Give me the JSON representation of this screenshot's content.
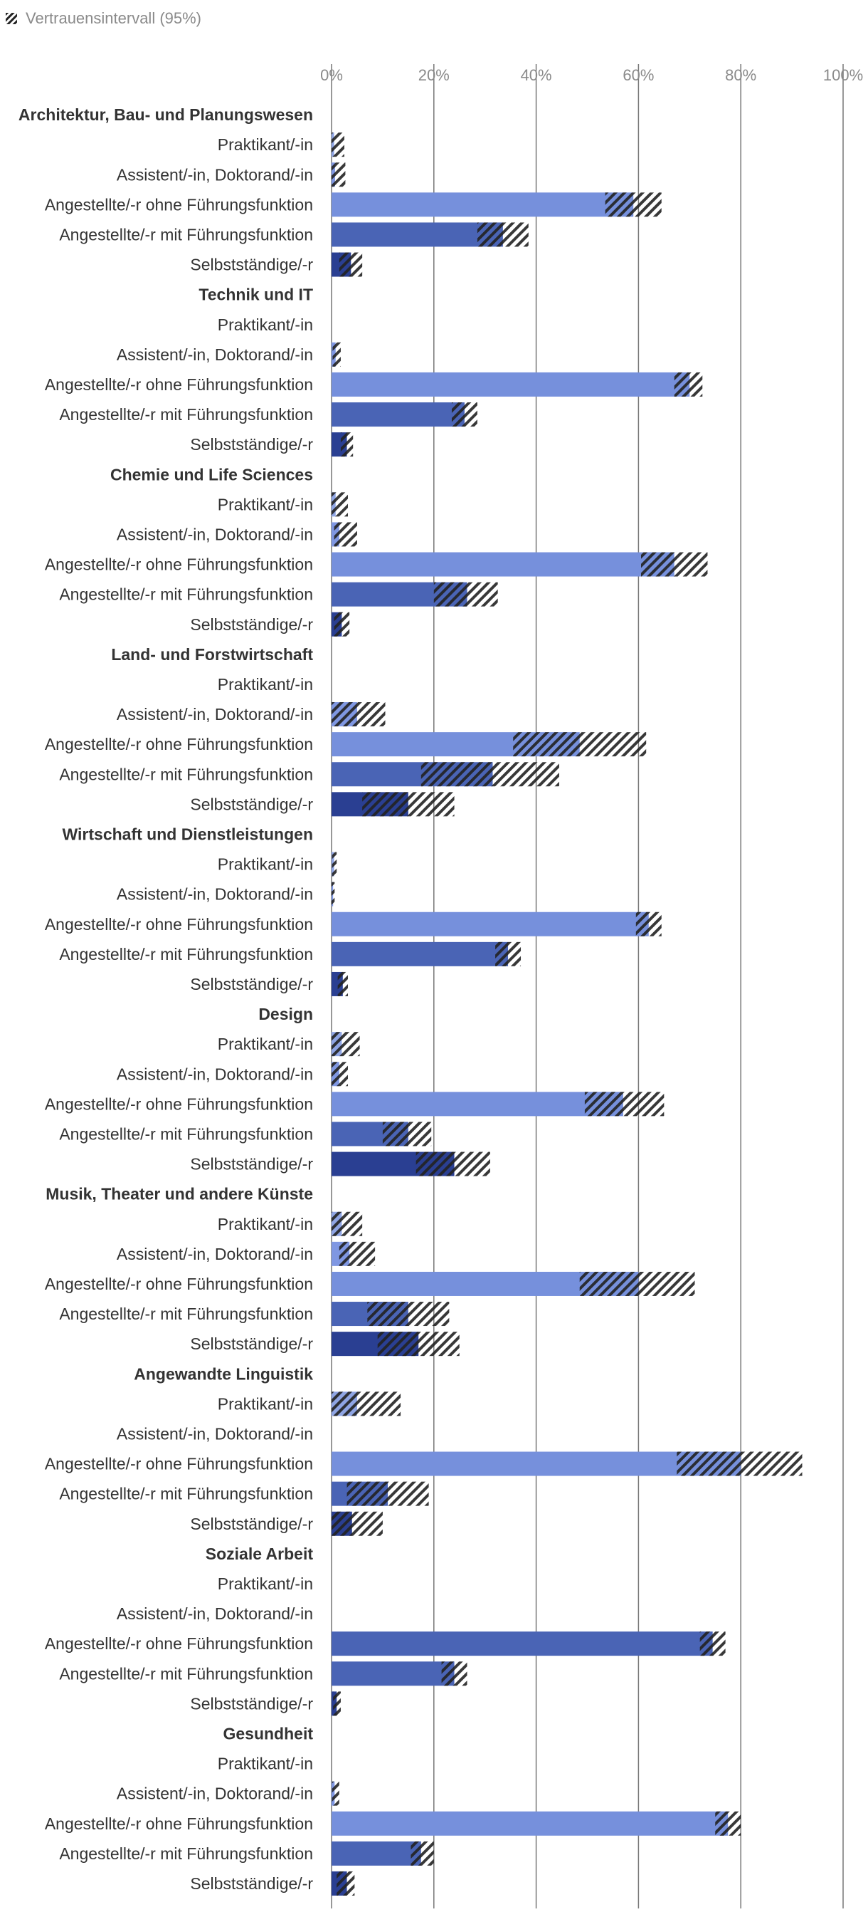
{
  "legend": {
    "ci_label": "Vertrauensintervall (95%)",
    "ci_icon": "hatch-swatch-icon"
  },
  "colors": {
    "praktikant": "#8fa5e4",
    "assistent": "#7f97e2",
    "ohne": "#7690dc",
    "mit": "#4a64b5",
    "selbst": "#2a3f92",
    "soziale_ohne": "#4a64b5",
    "grid": "#777777",
    "ci_stripe": "#222222"
  },
  "chart_data": {
    "type": "bar",
    "orientation": "horizontal",
    "x_axis": {
      "min": 0,
      "max": 100,
      "unit": "%",
      "tick_labels": [
        "0%",
        "20%",
        "40%",
        "60%",
        "80%",
        "100%"
      ]
    },
    "grid": true,
    "legend_position": "top-left",
    "groups": [
      {
        "name": "Architektur, Bau- und Planungswesen",
        "rows": [
          {
            "label": "Praktikant/-in",
            "value": 0.5,
            "ci": [
              0,
              2.5
            ]
          },
          {
            "label": "Assistent/-in, Doktorand/-in",
            "value": 0.7,
            "ci": [
              0,
              2.7
            ]
          },
          {
            "label": "Angestellte/-r ohne Führungsfunktion",
            "value": 59,
            "ci": [
              53.5,
              64.5
            ]
          },
          {
            "label": "Angestellte/-r mit Führungsfunktion",
            "value": 33.5,
            "ci": [
              28.5,
              38.5
            ]
          },
          {
            "label": "Selbstständige/-r",
            "value": 3.8,
            "ci": [
              1.5,
              6
            ]
          }
        ]
      },
      {
        "name": "Technik und IT",
        "rows": [
          {
            "label": "Praktikant/-in",
            "value": 0,
            "ci": null
          },
          {
            "label": "Assistent/-in, Doktorand/-in",
            "value": 0.8,
            "ci": [
              0.2,
              1.8
            ]
          },
          {
            "label": "Angestellte/-r ohne Führungsfunktion",
            "value": 70,
            "ci": [
              67,
              72.5
            ]
          },
          {
            "label": "Angestellte/-r mit Führungsfunktion",
            "value": 26,
            "ci": [
              23.5,
              28.5
            ]
          },
          {
            "label": "Selbstständige/-r",
            "value": 3,
            "ci": [
              1.8,
              4.2
            ]
          }
        ]
      },
      {
        "name": "Chemie und Life Sciences",
        "rows": [
          {
            "label": "Praktikant/-in",
            "value": 0.8,
            "ci": [
              0,
              3.2
            ]
          },
          {
            "label": "Assistent/-in, Doktorand/-in",
            "value": 1.5,
            "ci": [
              0.5,
              5
            ]
          },
          {
            "label": "Angestellte/-r ohne Führungsfunktion",
            "value": 67,
            "ci": [
              60.5,
              73.5
            ]
          },
          {
            "label": "Angestellte/-r mit Führungsfunktion",
            "value": 26.5,
            "ci": [
              20,
              32.5
            ]
          },
          {
            "label": "Selbstständige/-r",
            "value": 2,
            "ci": [
              0.5,
              3.5
            ]
          }
        ]
      },
      {
        "name": "Land- und Forstwirtschaft",
        "rows": [
          {
            "label": "Praktikant/-in",
            "value": 0,
            "ci": null
          },
          {
            "label": "Assistent/-in, Doktorand/-in",
            "value": 5,
            "ci": [
              0,
              10.5
            ]
          },
          {
            "label": "Angestellte/-r ohne Führungsfunktion",
            "value": 48.5,
            "ci": [
              35.5,
              61.5
            ]
          },
          {
            "label": "Angestellte/-r mit Führungsfunktion",
            "value": 31.5,
            "ci": [
              17.5,
              44.5
            ]
          },
          {
            "label": "Selbstständige/-r",
            "value": 15,
            "ci": [
              6,
              24
            ]
          }
        ]
      },
      {
        "name": "Wirtschaft und Dienstleistungen",
        "rows": [
          {
            "label": "Praktikant/-in",
            "value": 0.5,
            "ci": [
              0.1,
              1
            ]
          },
          {
            "label": "Assistent/-in, Doktorand/-in",
            "value": 0.3,
            "ci": [
              0,
              0.6
            ]
          },
          {
            "label": "Angestellte/-r ohne Führungsfunktion",
            "value": 62,
            "ci": [
              59.5,
              64.5
            ]
          },
          {
            "label": "Angestellte/-r mit Führungsfunktion",
            "value": 34.5,
            "ci": [
              32,
              37
            ]
          },
          {
            "label": "Selbstständige/-r",
            "value": 2.2,
            "ci": [
              1.2,
              3.2
            ]
          }
        ]
      },
      {
        "name": "Design",
        "rows": [
          {
            "label": "Praktikant/-in",
            "value": 2,
            "ci": [
              0,
              5.5
            ]
          },
          {
            "label": "Assistent/-in, Doktorand/-in",
            "value": 1.5,
            "ci": [
              0,
              3.2
            ]
          },
          {
            "label": "Angestellte/-r ohne Führungsfunktion",
            "value": 57,
            "ci": [
              49.5,
              65
            ]
          },
          {
            "label": "Angestellte/-r mit Führungsfunktion",
            "value": 15,
            "ci": [
              10,
              19.5
            ]
          },
          {
            "label": "Selbstständige/-r",
            "value": 24,
            "ci": [
              16.5,
              31
            ]
          }
        ]
      },
      {
        "name": "Musik, Theater und andere Künste",
        "rows": [
          {
            "label": "Praktikant/-in",
            "value": 2,
            "ci": [
              0,
              6
            ]
          },
          {
            "label": "Assistent/-in, Doktorand/-in",
            "value": 3.5,
            "ci": [
              1.5,
              8.5
            ]
          },
          {
            "label": "Angestellte/-r ohne Führungsfunktion",
            "value": 60,
            "ci": [
              48.5,
              71
            ]
          },
          {
            "label": "Angestellte/-r mit Führungsfunktion",
            "value": 15,
            "ci": [
              7,
              23
            ]
          },
          {
            "label": "Selbstständige/-r",
            "value": 17,
            "ci": [
              9,
              25
            ]
          }
        ]
      },
      {
        "name": "Angewandte Linguistik",
        "rows": [
          {
            "label": "Praktikant/-in",
            "value": 5,
            "ci": [
              0,
              13.5
            ]
          },
          {
            "label": "Assistent/-in, Doktorand/-in",
            "value": 0,
            "ci": null
          },
          {
            "label": "Angestellte/-r ohne Führungsfunktion",
            "value": 80,
            "ci": [
              67.5,
              92
            ]
          },
          {
            "label": "Angestellte/-r mit Führungsfunktion",
            "value": 11,
            "ci": [
              3,
              19
            ]
          },
          {
            "label": "Selbstständige/-r",
            "value": 4,
            "ci": [
              0,
              10
            ]
          }
        ]
      },
      {
        "name": "Soziale Arbeit",
        "rows": [
          {
            "label": "Praktikant/-in",
            "value": 0,
            "ci": null
          },
          {
            "label": "Assistent/-in, Doktorand/-in",
            "value": 0,
            "ci": null
          },
          {
            "label": "Angestellte/-r ohne Führungsfunktion",
            "value": 74.5,
            "ci": [
              72,
              77
            ]
          },
          {
            "label": "Angestellte/-r mit Führungsfunktion",
            "value": 24,
            "ci": [
              21.5,
              26.5
            ]
          },
          {
            "label": "Selbstständige/-r",
            "value": 1,
            "ci": [
              0.3,
              1.8
            ]
          }
        ]
      },
      {
        "name": "Gesundheit",
        "rows": [
          {
            "label": "Praktikant/-in",
            "value": 0,
            "ci": null
          },
          {
            "label": "Assistent/-in, Doktorand/-in",
            "value": 0.6,
            "ci": [
              0.1,
              1.5
            ]
          },
          {
            "label": "Angestellte/-r ohne Führungsfunktion",
            "value": 77.5,
            "ci": [
              75,
              80
            ]
          },
          {
            "label": "Angestellte/-r mit Führungsfunktion",
            "value": 17.5,
            "ci": [
              15.5,
              20
            ]
          },
          {
            "label": "Selbstständige/-r",
            "value": 3,
            "ci": [
              1,
              4.5
            ]
          }
        ]
      }
    ]
  }
}
